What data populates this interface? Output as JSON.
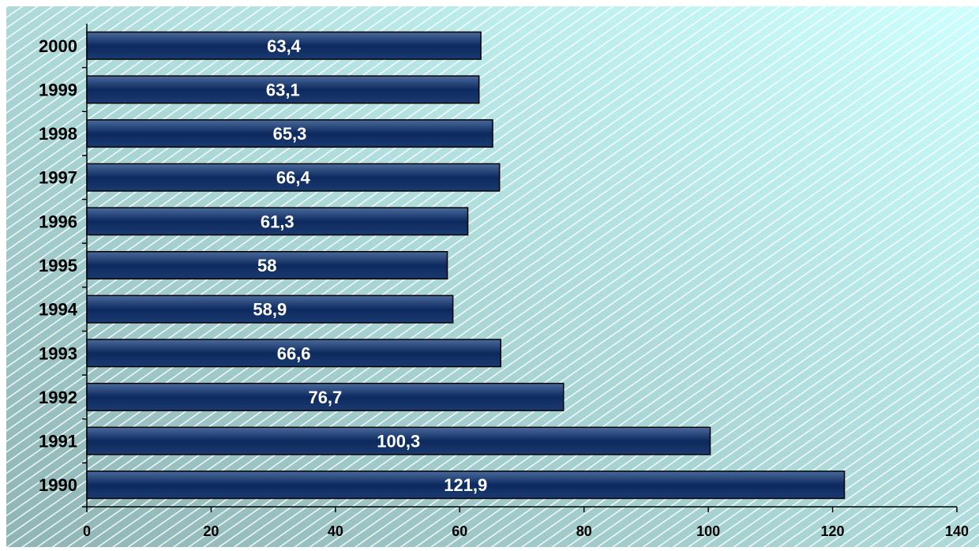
{
  "chart_data": {
    "type": "bar",
    "orientation": "horizontal",
    "title": "",
    "xlabel": "",
    "ylabel": "",
    "categories": [
      "1990",
      "1991",
      "1992",
      "1993",
      "1994",
      "1995",
      "1996",
      "1997",
      "1998",
      "1999",
      "2000"
    ],
    "values": [
      121.9,
      100.3,
      76.7,
      66.6,
      58.9,
      58,
      61.3,
      66.4,
      65.3,
      63.1,
      63.4
    ],
    "value_labels": [
      "121,9",
      "100,3",
      "76,7",
      "66,6",
      "58,9",
      "58",
      "61,3",
      "66,4",
      "65,3",
      "63,1",
      "63,4"
    ],
    "xlim": [
      0,
      140
    ],
    "x_ticks": [
      0,
      20,
      40,
      60,
      80,
      100,
      120,
      140
    ],
    "x_tick_labels": [
      "0",
      "20",
      "40",
      "60",
      "80",
      "100",
      "120",
      "140"
    ],
    "grid": false,
    "legend": "none",
    "colors": {
      "bar_top": "#4a6a9c",
      "bar_mid": "#0d2a5e",
      "bar_bottom": "#1a3a70",
      "bar_outline": "#000000",
      "value_label": "#ffffff",
      "axis_text": "#000000",
      "background_left": "#8fb4b4",
      "background_right": "#ccffff",
      "hatch": "#ffffff"
    }
  }
}
